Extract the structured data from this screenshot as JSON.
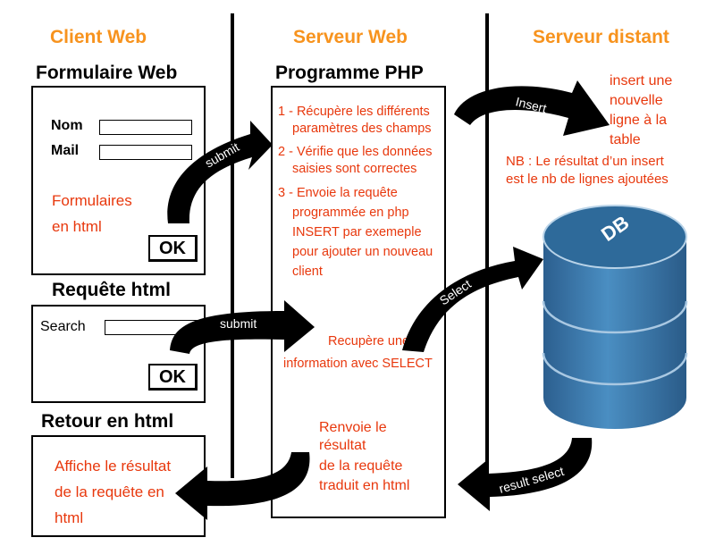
{
  "columns": {
    "client": "Client Web",
    "server": "Serveur Web",
    "remote": "Serveur distant"
  },
  "form_section": {
    "title": "Formulaire Web",
    "name_label": "Nom",
    "mail_label": "Mail",
    "note_line1": "Formulaires",
    "note_line2": "en html",
    "ok_label": "OK"
  },
  "request_section": {
    "title": "Requête html",
    "search_label": "Search",
    "ok_label": "OK"
  },
  "return_section": {
    "title": "Retour en html",
    "line1": "Affiche le résultat",
    "line2": "de la requête en",
    "line3": "html"
  },
  "php_program": {
    "title": "Programme PHP",
    "step1_line1": "1 -  Récupère les différents",
    "step1_line2": "paramètres des champs",
    "step2_line1": "2 - Vérifie que les données",
    "step2_line2": "saisies sont correctes",
    "step3_line1": "3 - Envoie la requête",
    "step3_line2": "programmée en php",
    "step3_line3": "INSERT par exemeple",
    "step3_line4": "pour ajouter un nouveau",
    "step3_line5": "client",
    "select_line1": "Recupère une",
    "select_line2": "information  avec SELECT",
    "return_line1": "Renvoie le",
    "return_line2": "résultat",
    "return_line3": "de la requête",
    "return_line4": "traduit en html"
  },
  "remote_server": {
    "insert_line1": "insert une",
    "insert_line2": "nouvelle",
    "insert_line3": "ligne à la",
    "insert_line4": "table",
    "note_line1": "NB : Le résultat d’un insert",
    "note_line2": "est le nb de lignes ajoutées",
    "db_label": "DB"
  },
  "arrows": {
    "submit_form": "submit",
    "submit_request": "submit",
    "insert": "Insert",
    "select": "Select",
    "result_select": "result select"
  },
  "colors": {
    "heading": "#f7931e",
    "annotation": "#e8380d",
    "db_body": "#3a78a8",
    "db_top": "#2e6a9a"
  }
}
